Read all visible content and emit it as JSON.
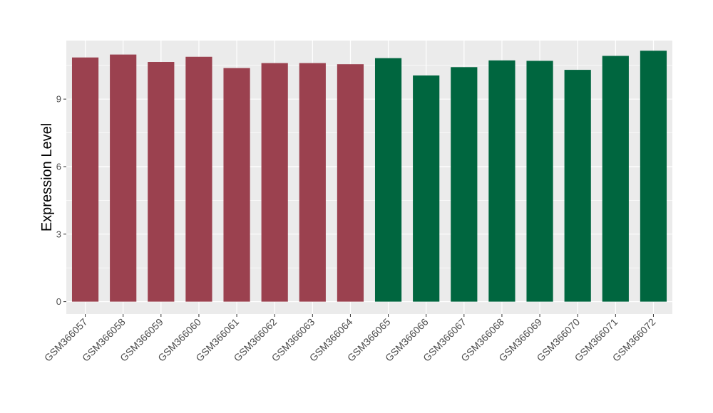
{
  "chart_data": {
    "type": "bar",
    "title": "",
    "xlabel": "",
    "ylabel": "Expression Level",
    "ylim": [
      -0.55,
      11.6
    ],
    "yticks": [
      0,
      3,
      6,
      9
    ],
    "grid": true,
    "categories": [
      "GSM366057",
      "GSM366058",
      "GSM366059",
      "GSM366060",
      "GSM366061",
      "GSM366062",
      "GSM366063",
      "GSM366064",
      "GSM366065",
      "GSM366066",
      "GSM366067",
      "GSM366068",
      "GSM366069",
      "GSM366070",
      "GSM366071",
      "GSM366072"
    ],
    "values": [
      10.85,
      10.98,
      10.65,
      10.88,
      10.38,
      10.6,
      10.6,
      10.55,
      10.82,
      10.05,
      10.42,
      10.72,
      10.7,
      10.3,
      10.92,
      11.15
    ],
    "bar_colors": [
      "#9b414f",
      "#9b414f",
      "#9b414f",
      "#9b414f",
      "#9b414f",
      "#9b414f",
      "#9b414f",
      "#9b414f",
      "#00663f",
      "#00663f",
      "#00663f",
      "#00663f",
      "#00663f",
      "#00663f",
      "#00663f",
      "#00663f"
    ],
    "panel_background": "#ebebeb",
    "grid_color": "#ffffff"
  }
}
